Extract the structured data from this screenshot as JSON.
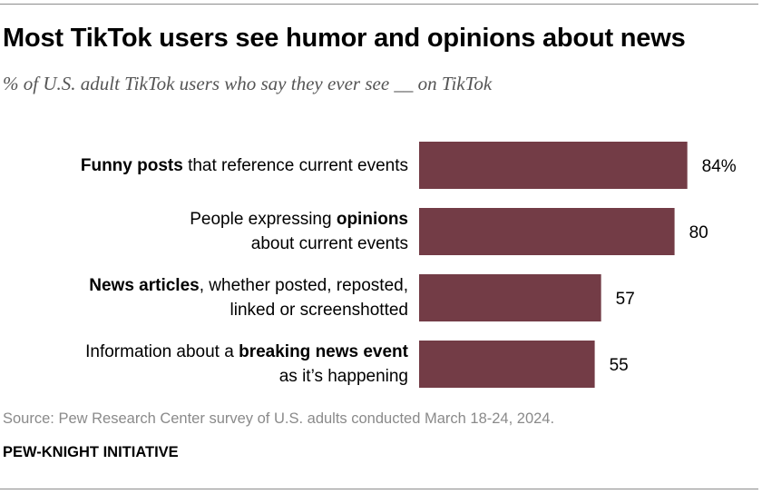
{
  "header": {
    "title": "Most TikTok users see humor and opinions about news",
    "subtitle": "% of U.S. adult TikTok users who say they ever see __ on TikTok"
  },
  "rows": [
    {
      "line1": [
        {
          "t": "Funny posts",
          "b": true
        },
        {
          "t": " that reference current events",
          "b": false
        }
      ],
      "line2": []
    },
    {
      "line1": [
        {
          "t": "People expressing ",
          "b": false
        },
        {
          "t": "opinions",
          "b": true
        }
      ],
      "line2": [
        {
          "t": "about current events",
          "b": false
        }
      ]
    },
    {
      "line1": [
        {
          "t": "News articles",
          "b": true
        },
        {
          "t": ", whether posted, reposted,",
          "b": false
        }
      ],
      "line2": [
        {
          "t": "linked or screenshotted",
          "b": false
        }
      ]
    },
    {
      "line1": [
        {
          "t": "Information about a ",
          "b": false
        },
        {
          "t": "breaking news event",
          "b": true
        }
      ],
      "line2": [
        {
          "t": "as it’s happening",
          "b": false
        }
      ]
    }
  ],
  "chart_data": {
    "type": "bar",
    "orientation": "horizontal",
    "categories": [
      "Funny posts that reference current events",
      "People expressing opinions about current events",
      "News articles, whether posted, reposted, linked or screenshotted",
      "Information about a breaking news event as it’s happening"
    ],
    "values": [
      84,
      80,
      57,
      55
    ],
    "value_labels": [
      "84%",
      "80",
      "57",
      "55"
    ],
    "xlim": [
      0,
      100
    ],
    "bar_color": "#733c46",
    "grid": false,
    "legend": "none"
  },
  "footer": {
    "source": "Source: Pew Research Center survey of U.S. adults conducted March 18-24, 2024.",
    "credit": "PEW-KNIGHT INITIATIVE"
  }
}
